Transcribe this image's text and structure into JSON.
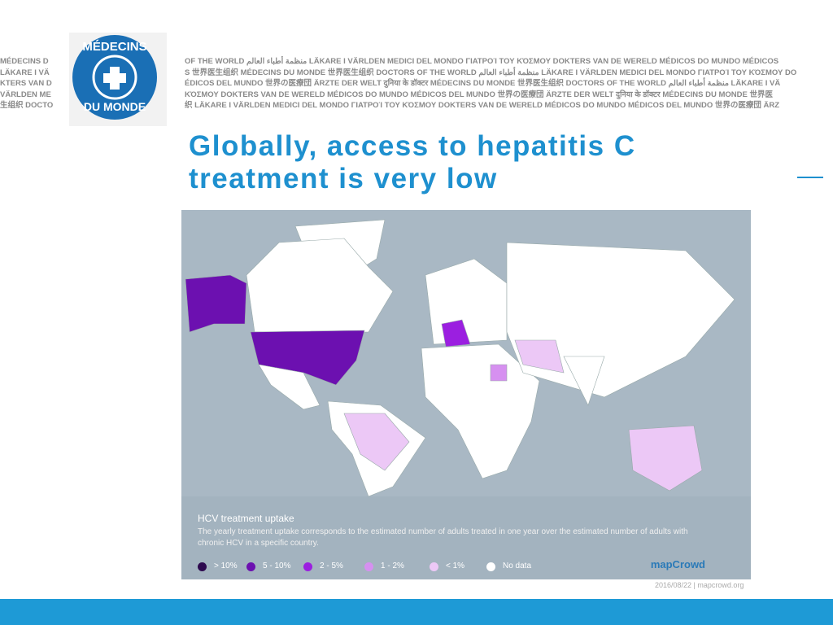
{
  "logo": {
    "line1": "MÉDECINS",
    "line2": "DU MONDE"
  },
  "banner_left": [
    "MÉDECINS D",
    "LÄKARE I VÄ",
    "KTERS VAN D",
    "VÄRLDEN ME",
    "生组织 DOCTO"
  ],
  "banner_right": [
    "OF THE WORLD منظمة أطباء العالم LÄKARE I VÄRLDEN MEDICI DEL MONDO ΓΙΑΤΡΟΊ ΤΟΥ ΚΌΣΜΟΥ DOKTERS VAN DE WERELD MÉDICOS DO MUNDO MÉDICOS",
    "S 世界医生组织 MÉDECINS DU MONDE 世界医生组织 DOCTORS OF THE WORLD منظمة أطباء العالم LÄKARE I VÄRLDEN MEDICI DEL MONDO ΓΙΑΤΡΟΊ ΤΟΥ ΚΌΣΜΟΥ DO",
    "ÉDICOS DEL MUNDO 世界の医療団 ÄRZTE DER WELT दुनिया के डॉक्टर MÉDECINS DU MONDE 世界医生组织 DOCTORS OF THE WORLD منظمة أطباء العالم LÄKARE I VÄ",
    "ΚΌΣΜΟΥ DOKTERS VAN DE WERELD MÉDICOS DO MUNDO MÉDICOS DEL MUNDO 世界の医療団 ÄRZTE DER WELT दुनिया के डॉक्टर MÉDECINS DU MONDE 世界医",
    "织 LÄKARE I VÄRLDEN MEDICI DEL MONDO ΓΙΑΤΡΟΊ ΤΟΥ ΚΌΣΜΟΥ DOKTERS VAN DE WERELD MÉDICOS DO MUNDO MÉDICOS DEL MUNDO 世界の医療団 ÄRZ"
  ],
  "title": "Globally, access to hepatitis C treatment is very low",
  "map": {
    "legend_title": "HCV treatment uptake",
    "description": "The yearly treatment uptake corresponds to the estimated number of adults treated in one year over the estimated number of adults with chronic HCV in a specific country.",
    "legend": [
      {
        "label": "> 10%",
        "color": "#2e0a4f"
      },
      {
        "label": "5 - 10%",
        "color": "#6c10b0"
      },
      {
        "label": "2 - 5%",
        "color": "#9b1fe0"
      },
      {
        "label": "1 - 2%",
        "color": "#d690f0"
      },
      {
        "label": "< 1%",
        "color": "#ecc8f6"
      },
      {
        "label": "No data",
        "color": "#ffffff"
      }
    ],
    "brand": "mapCrowd",
    "footer": "2016/08/22 | mapcrowd.org"
  }
}
